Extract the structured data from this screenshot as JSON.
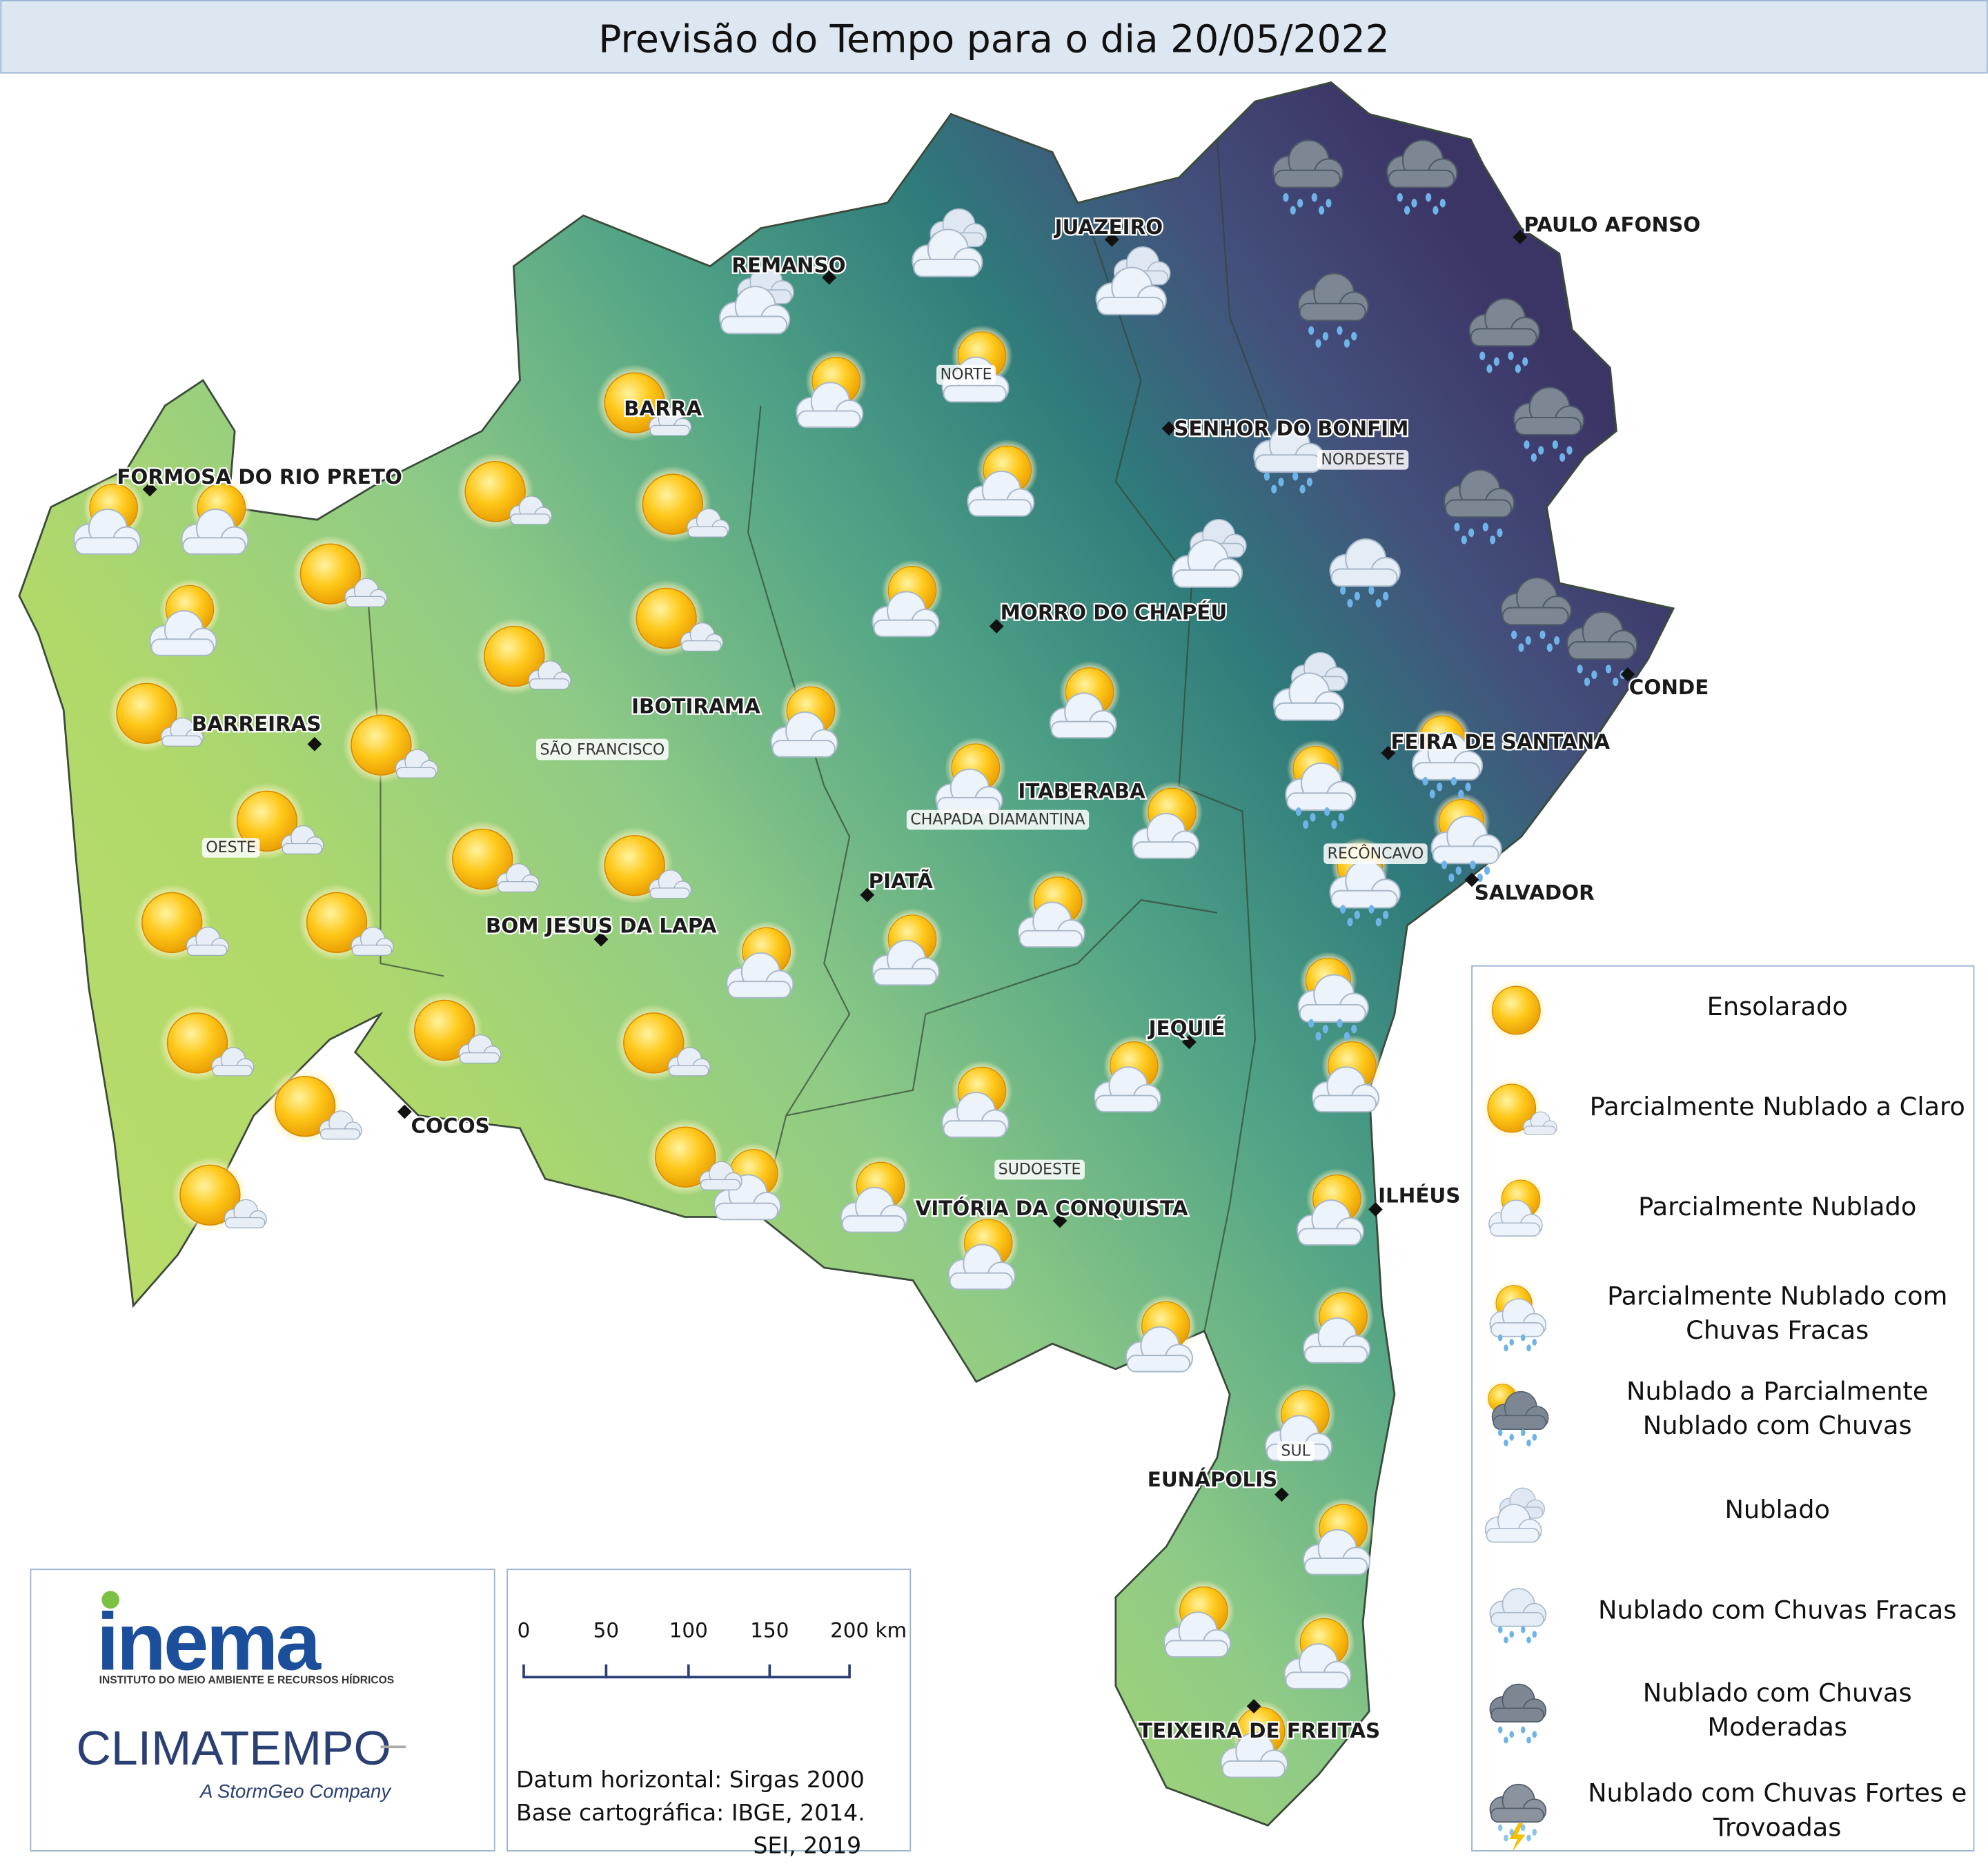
{
  "header": {
    "title": "Previsão do Tempo para o dia 20/05/2022"
  },
  "cities": [
    "PAULO AFONSO",
    "JUAZEIRO",
    "REMANSO",
    "SENHOR DO BONFIM",
    "FORMOSA DO RIO PRETO",
    "BARRA",
    "MORRO DO CHAPÉU",
    "CONDE",
    "FEIRA DE SANTANA",
    "IBOTIRAMA",
    "BARREIRAS",
    "ITABERABA",
    "SALVADOR",
    "PIATÃ",
    "BOM JESUS DA LAPA",
    "JEQUIÉ",
    "COCOS",
    "ILHÉUS",
    "VITÓRIA DA CONQUISTA",
    "EUNÁPOLIS",
    "TEIXEIRA DE FREITAS"
  ],
  "regions": [
    "NORTE",
    "NORDESTE",
    "SÃO FRANCISCO",
    "OESTE",
    "CHAPADA DIAMANTINA",
    "RECÔNCAVO",
    "SUDOESTE",
    "SUL"
  ],
  "legend": [
    {
      "lines": [
        "Ensolarado"
      ]
    },
    {
      "lines": [
        "Parcialmente Nublado a Claro"
      ]
    },
    {
      "lines": [
        "Parcialmente Nublado"
      ]
    },
    {
      "lines": [
        "Parcialmente Nublado com",
        "Chuvas Fracas"
      ]
    },
    {
      "lines": [
        "Nublado a Parcialmente",
        "Nublado com Chuvas"
      ]
    },
    {
      "lines": [
        "Nublado"
      ]
    },
    {
      "lines": [
        "Nublado com Chuvas Fracas"
      ]
    },
    {
      "lines": [
        "Nublado com Chuvas",
        "Moderadas"
      ]
    },
    {
      "lines": [
        "Nublado com Chuvas Fortes e",
        "Trovoadas"
      ]
    }
  ],
  "scale_bar": {
    "labels": [
      "0",
      "50",
      "100",
      "150",
      "200 km"
    ]
  },
  "notes": [
    "Datum horizontal: Sirgas 2000",
    "Base cartográfica: IBGE, 2014.",
    "SEI, 2019"
  ],
  "logos": {
    "inema": "inema",
    "inema_sub": "INSTITUTO DO MEIO AMBIENTE E RECURSOS HÍDRICOS",
    "climatempo": "CLIMATEMPO",
    "climatempo_sub": "A StormGeo Company"
  }
}
